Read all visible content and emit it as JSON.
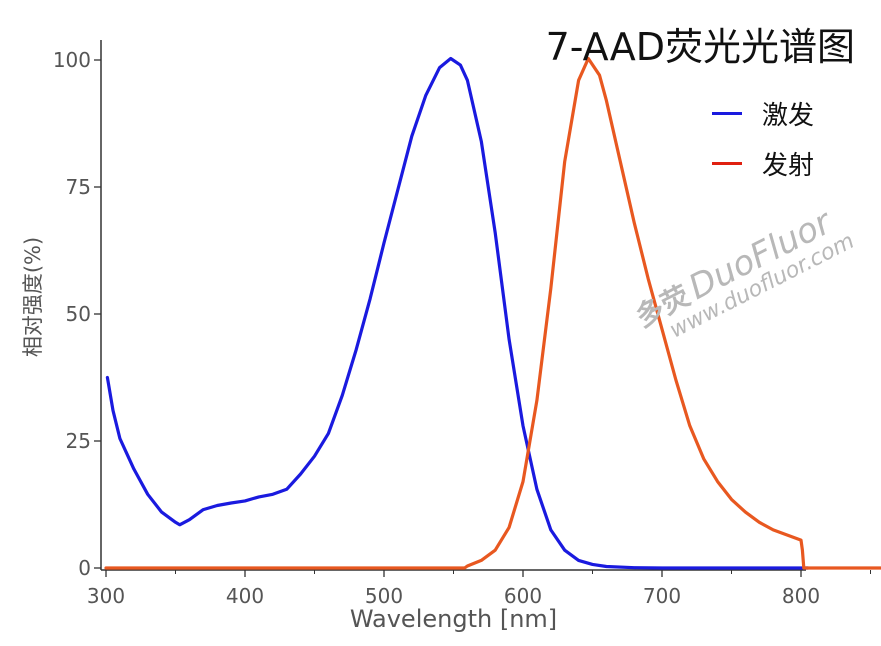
{
  "chart_data": {
    "type": "line",
    "title": "7-AAD荧光光谱图",
    "xlabel": "Wavelength [nm]",
    "ylabel": "相对强度(%)",
    "xlim": [
      300,
      905
    ],
    "ylim": [
      0,
      100
    ],
    "xticks": [
      300,
      400,
      500,
      600,
      700,
      800,
      900
    ],
    "yticks": [
      0,
      25,
      50,
      75,
      100
    ],
    "grid": false,
    "legend_position": "top-right",
    "series": [
      {
        "name": "激发",
        "color": "#1a1adf",
        "points": [
          [
            301,
            37.5
          ],
          [
            305,
            31
          ],
          [
            310,
            25.5
          ],
          [
            320,
            19.5
          ],
          [
            330,
            14.5
          ],
          [
            340,
            11
          ],
          [
            350,
            9
          ],
          [
            353,
            8.5
          ],
          [
            360,
            9.5
          ],
          [
            370,
            11.5
          ],
          [
            380,
            12.3
          ],
          [
            390,
            12.8
          ],
          [
            400,
            13.2
          ],
          [
            410,
            14
          ],
          [
            420,
            14.5
          ],
          [
            430,
            15.5
          ],
          [
            440,
            18.5
          ],
          [
            450,
            22
          ],
          [
            460,
            26.5
          ],
          [
            470,
            34
          ],
          [
            480,
            43
          ],
          [
            490,
            53
          ],
          [
            500,
            64
          ],
          [
            510,
            74.5
          ],
          [
            520,
            85
          ],
          [
            530,
            93
          ],
          [
            540,
            98.5
          ],
          [
            548,
            100.3
          ],
          [
            555,
            99
          ],
          [
            560,
            96
          ],
          [
            570,
            84
          ],
          [
            580,
            66
          ],
          [
            590,
            45
          ],
          [
            600,
            28
          ],
          [
            610,
            15.5
          ],
          [
            620,
            7.5
          ],
          [
            630,
            3.5
          ],
          [
            640,
            1.5
          ],
          [
            650,
            0.7
          ],
          [
            660,
            0.3
          ],
          [
            680,
            0.05
          ],
          [
            700,
            0
          ],
          [
            750,
            0
          ],
          [
            805,
            0
          ]
        ]
      },
      {
        "name": "发射",
        "color": "#e85820",
        "points": [
          [
            300,
            0
          ],
          [
            400,
            0
          ],
          [
            500,
            0
          ],
          [
            558,
            0
          ],
          [
            560,
            0.4
          ],
          [
            570,
            1.5
          ],
          [
            580,
            3.5
          ],
          [
            590,
            8
          ],
          [
            600,
            17
          ],
          [
            610,
            33
          ],
          [
            620,
            55
          ],
          [
            630,
            80
          ],
          [
            640,
            96
          ],
          [
            647,
            100.3
          ],
          [
            655,
            97
          ],
          [
            660,
            92
          ],
          [
            670,
            80
          ],
          [
            680,
            68
          ],
          [
            690,
            57
          ],
          [
            700,
            47
          ],
          [
            710,
            37
          ],
          [
            720,
            28
          ],
          [
            730,
            21.5
          ],
          [
            740,
            17
          ],
          [
            750,
            13.5
          ],
          [
            760,
            11
          ],
          [
            770,
            9
          ],
          [
            780,
            7.5
          ],
          [
            790,
            6.5
          ],
          [
            800,
            5.5
          ],
          [
            801,
            3.5
          ],
          [
            802,
            0
          ],
          [
            850,
            0
          ],
          [
            905,
            0
          ]
        ]
      }
    ]
  },
  "watermark": {
    "logo_text": "多荧",
    "brand": "DuoFluor",
    "url": "www.duofluor.com"
  }
}
